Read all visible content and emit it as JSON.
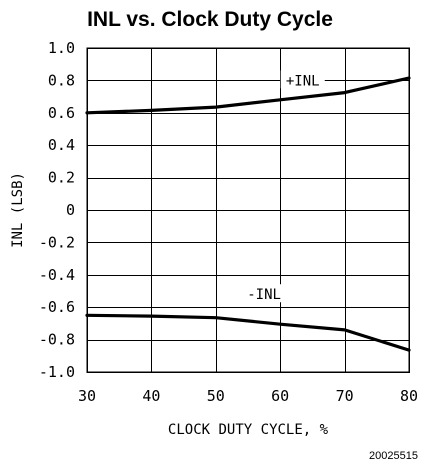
{
  "chart_data": {
    "type": "line",
    "title": "INL vs. Clock Duty Cycle",
    "xlabel": "CLOCK DUTY CYCLE, %",
    "ylabel": "INL (LSB)",
    "xlim": [
      30,
      80
    ],
    "ylim": [
      -1.0,
      1.0
    ],
    "x_ticks": [
      30,
      40,
      50,
      60,
      70,
      80
    ],
    "x_tick_labels": [
      "30",
      "40",
      "50",
      "60",
      "70",
      "80"
    ],
    "y_ticks": [
      1.0,
      0.8,
      0.6,
      0.4,
      0.2,
      0,
      -0.2,
      -0.4,
      -0.6,
      -0.8,
      -1.0
    ],
    "y_tick_labels": [
      "1.0",
      "0.8",
      "0.6",
      "0.4",
      "0.2",
      "0",
      "-0.2",
      "-0.4",
      "-0.6",
      "-0.8",
      "-1.0"
    ],
    "grid": true,
    "series": [
      {
        "name": "+INL",
        "x": [
          30,
          40,
          50,
          60,
          70,
          80
        ],
        "values": [
          0.6,
          0.615,
          0.635,
          0.68,
          0.725,
          0.815
        ]
      },
      {
        "name": "-INL",
        "x": [
          30,
          40,
          50,
          60,
          70,
          80
        ],
        "values": [
          -0.65,
          -0.655,
          -0.665,
          -0.705,
          -0.74,
          -0.865
        ]
      }
    ],
    "annotations": [
      {
        "text": "+INL",
        "series": "+INL"
      },
      {
        "text": "-INL",
        "series": "-INL"
      }
    ],
    "footnote": "20025515"
  }
}
